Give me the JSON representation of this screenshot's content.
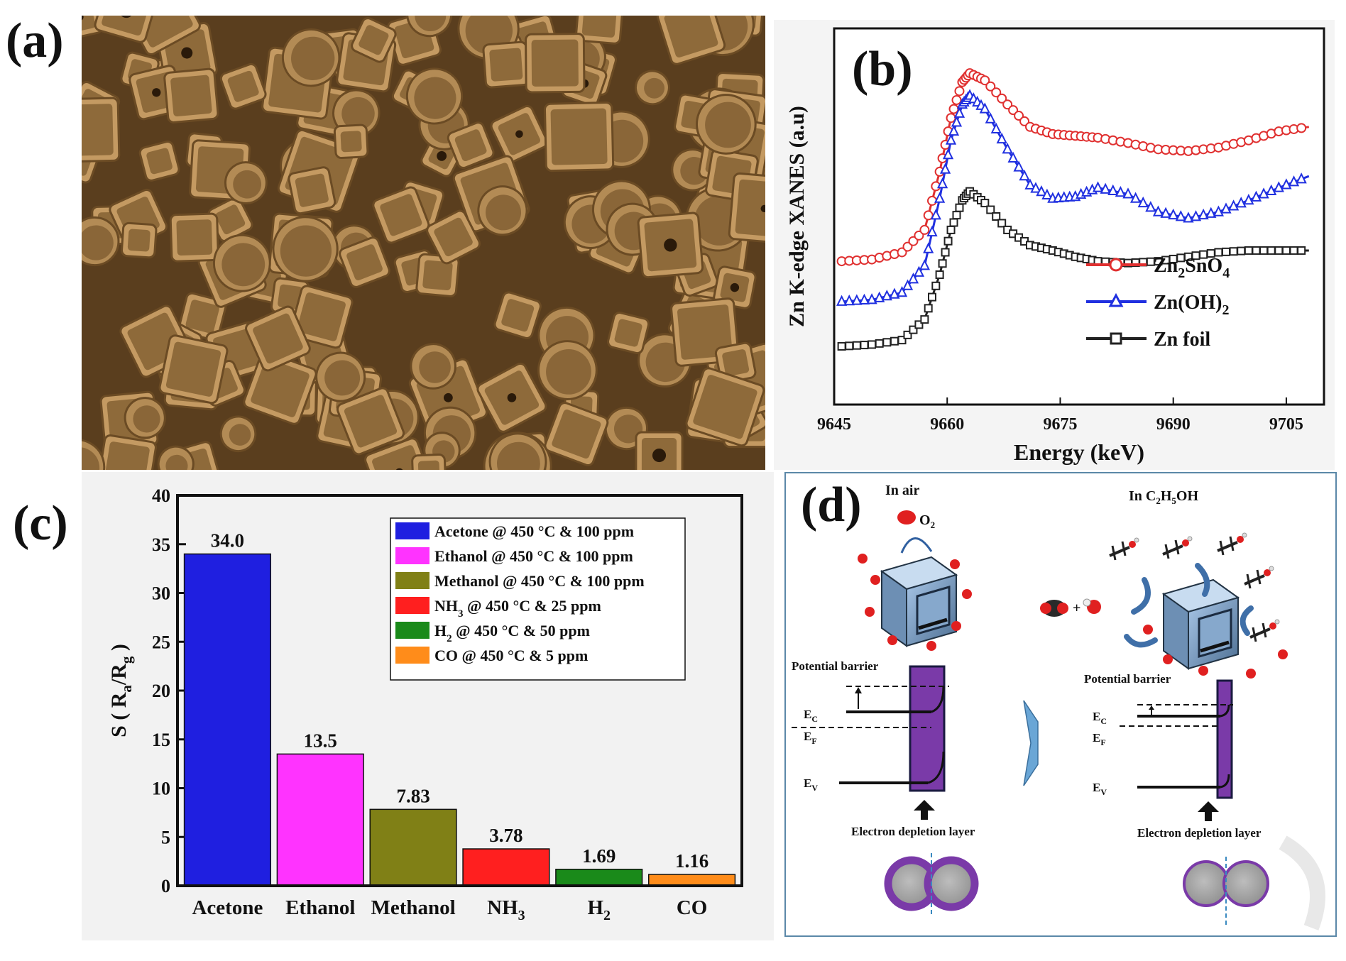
{
  "panels": {
    "a": {
      "label": "(a)"
    },
    "b": {
      "label": "(b)"
    },
    "c": {
      "label": "(c)"
    },
    "d": {
      "label": "(d)"
    }
  },
  "colors": {
    "sem_tone": "#a8814d",
    "acetone": "#1f1fe0",
    "ethanol": "#ff33ff",
    "methanol": "#808016",
    "nh3": "#ff1f1f",
    "h2": "#1a8a1a",
    "co": "#ff8c1a",
    "zn2sno4": "#e03030",
    "znoh2": "#2030e0",
    "znfoil": "#222222",
    "depletion": "#7a3aa8",
    "d_frame": "#5b88a8"
  },
  "chart_data": [
    {
      "type": "line",
      "panel": "b",
      "xlabel": "Energy (keV)",
      "ylabel": "Zn K-edge XANES (a.u)",
      "x_ticks": [
        "9645",
        "9660",
        "9675",
        "9690",
        "9705"
      ],
      "xlim": [
        9645,
        9710
      ],
      "ylim": [
        0,
        4.2
      ],
      "legend_position": "bottom-right",
      "series": [
        {
          "name": "Zn2SnO4",
          "name_parts": [
            "Zn",
            "2",
            "SnO",
            "4"
          ],
          "marker": "circle",
          "color": "#e03030",
          "x": [
            9646,
            9650,
            9654,
            9657,
            9659,
            9660.5,
            9662,
            9663,
            9665,
            9668,
            9671,
            9674,
            9677,
            9680,
            9684,
            9688,
            9692,
            9696,
            9700,
            9704,
            9708
          ],
          "y": [
            1.6,
            1.62,
            1.7,
            1.95,
            2.6,
            3.2,
            3.6,
            3.7,
            3.62,
            3.35,
            3.1,
            3.02,
            3.0,
            2.98,
            2.92,
            2.85,
            2.83,
            2.87,
            2.95,
            3.05,
            3.1
          ]
        },
        {
          "name": "Zn(OH)2",
          "name_parts": [
            "Zn(OH)",
            "2"
          ],
          "marker": "triangle",
          "color": "#2030e0",
          "x": [
            9646,
            9650,
            9654,
            9657,
            9659,
            9660.5,
            9662,
            9663,
            9665,
            9668,
            9671,
            9674,
            9677,
            9680,
            9684,
            9688,
            9692,
            9696,
            9700,
            9704,
            9708
          ],
          "y": [
            1.15,
            1.17,
            1.25,
            1.55,
            2.3,
            2.95,
            3.35,
            3.45,
            3.3,
            2.85,
            2.45,
            2.3,
            2.32,
            2.42,
            2.35,
            2.15,
            2.08,
            2.15,
            2.28,
            2.42,
            2.55
          ]
        },
        {
          "name": "Zn foil",
          "name_parts": [
            "Zn foil"
          ],
          "marker": "square",
          "color": "#222222",
          "x": [
            9646,
            9650,
            9654,
            9657,
            9659,
            9660.5,
            9662,
            9663,
            9665,
            9668,
            9671,
            9674,
            9677,
            9680,
            9684,
            9688,
            9692,
            9696,
            9700,
            9704,
            9708
          ],
          "y": [
            0.65,
            0.67,
            0.72,
            0.95,
            1.45,
            1.95,
            2.28,
            2.38,
            2.25,
            1.95,
            1.78,
            1.72,
            1.65,
            1.6,
            1.58,
            1.6,
            1.65,
            1.7,
            1.72,
            1.72,
            1.72
          ]
        }
      ]
    },
    {
      "type": "bar",
      "panel": "c",
      "categories": [
        "Acetone",
        "Ethanol",
        "Methanol",
        "NH3",
        "H2",
        "CO"
      ],
      "category_parts": [
        [
          "Acetone"
        ],
        [
          "Ethanol"
        ],
        [
          "Methanol"
        ],
        [
          "NH",
          "3"
        ],
        [
          "H",
          "2"
        ],
        [
          "CO"
        ]
      ],
      "values": [
        34.0,
        13.5,
        7.83,
        3.78,
        1.69,
        1.16
      ],
      "value_labels": [
        "34.0",
        "13.5",
        "7.83",
        "3.78",
        "1.69",
        "1.16"
      ],
      "colors": [
        "#1f1fe0",
        "#ff33ff",
        "#808016",
        "#ff1f1f",
        "#1a8a1a",
        "#ff8c1a"
      ],
      "ylabel_parts": [
        "S ( R",
        "a",
        "/R",
        "g",
        " )"
      ],
      "ylim": [
        0,
        40
      ],
      "y_ticks": [
        "0",
        "5",
        "10",
        "15",
        "20",
        "25",
        "30",
        "35",
        "40"
      ],
      "legend_position": "top-right",
      "legend": [
        {
          "parts": [
            "Acetone @ 450 °C & 100 ppm"
          ]
        },
        {
          "parts": [
            "Ethanol @ 450 °C & 100 ppm"
          ]
        },
        {
          "parts": [
            "Methanol @ 450 °C & 100 ppm"
          ]
        },
        {
          "parts": [
            "NH",
            "3",
            " @ 450 °C & 25 ppm"
          ]
        },
        {
          "parts": [
            "H",
            "2",
            " @ 450 °C & 50 ppm"
          ]
        },
        {
          "parts": [
            "CO @ 450 °C & 5 ppm"
          ]
        }
      ]
    }
  ],
  "schematic": {
    "left": {
      "title": "In air",
      "o2_label": "O",
      "o2_sub": "2",
      "barrier_label": "Potential barrier",
      "ec": "E",
      "ec_sub": "C",
      "ef": "E",
      "ef_sub": "F",
      "ev": "E",
      "ev_sub": "V",
      "depletion_label": "Electron depletion layer"
    },
    "right": {
      "title_prefix": "In C",
      "title_sub1": "2",
      "title_mid": "H",
      "title_sub2": "5",
      "title_suffix": "OH",
      "barrier_label": "Potential barrier",
      "ec": "E",
      "ec_sub": "C",
      "ef": "E",
      "ef_sub": "F",
      "ev": "E",
      "ev_sub": "V",
      "depletion_label": "Electron depletion layer",
      "plus": "+"
    }
  }
}
